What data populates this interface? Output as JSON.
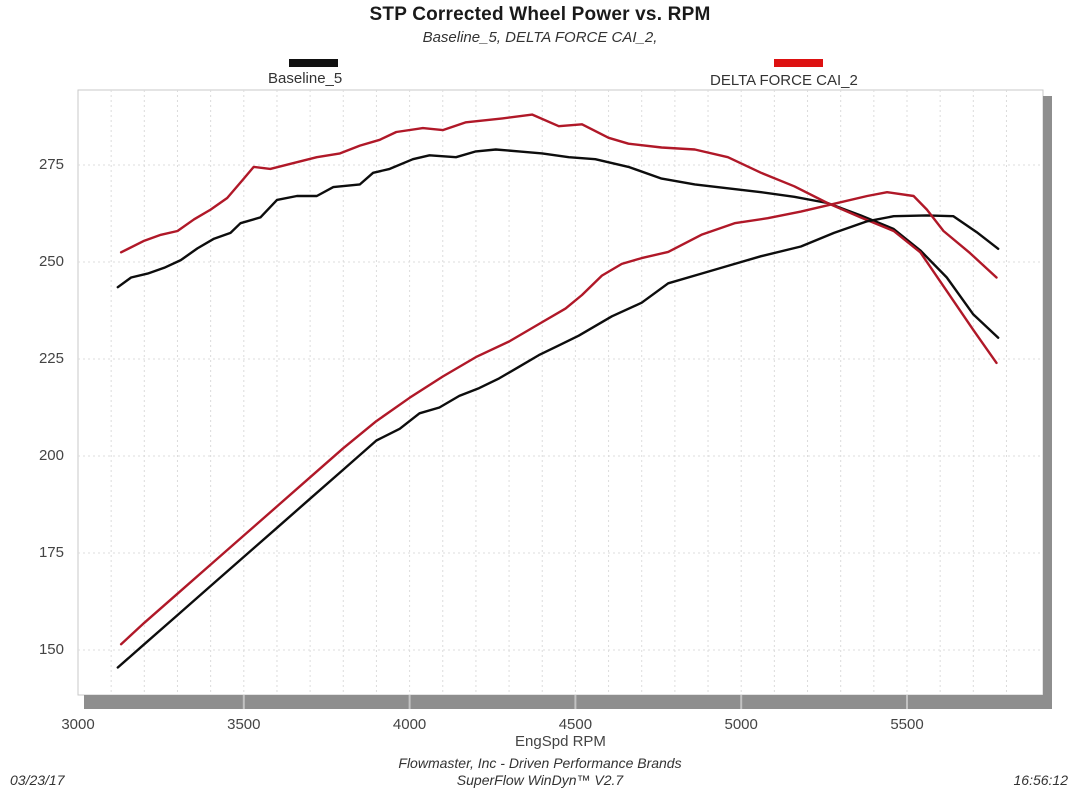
{
  "header": {
    "title": "STP Corrected Wheel Power vs. RPM",
    "subtitle": "Baseline_5, DELTA FORCE CAI_2,"
  },
  "legend": {
    "baseline": {
      "label": "Baseline_5",
      "color": "#111111"
    },
    "cai": {
      "label": "DELTA FORCE CAI_2",
      "color": "#dd1111"
    }
  },
  "footer": {
    "brand_line": "Flowmaster, Inc - Driven Performance Brands",
    "software_line": "SuperFlow WinDyn™ V2.7",
    "date": "03/23/17",
    "time": "16:56:12"
  },
  "chart_data": {
    "type": "line",
    "title": "STP Corrected Wheel Power vs. RPM",
    "xlabel": "EngSpd RPM",
    "ylabel": "",
    "x_range": [
      3000,
      5900
    ],
    "y_range": [
      138,
      294
    ],
    "x_ticks": [
      3000,
      3500,
      4000,
      4500,
      5000,
      5500
    ],
    "y_ticks": [
      150,
      175,
      200,
      225,
      250,
      275
    ],
    "x_minor_grid_step": 100,
    "grid": true,
    "legend_position": "top",
    "axis_strip_color": "#8e8e8e",
    "gridline_color": "#dcdcdc",
    "series": [
      {
        "name": "Baseline_5 torque curve",
        "color": "#0d0d0d",
        "points": [
          [
            3120,
            243.5
          ],
          [
            3160,
            246
          ],
          [
            3210,
            247
          ],
          [
            3260,
            248.5
          ],
          [
            3310,
            250.5
          ],
          [
            3360,
            253.5
          ],
          [
            3410,
            256
          ],
          [
            3460,
            257.5
          ],
          [
            3490,
            260
          ],
          [
            3550,
            261.5
          ],
          [
            3600,
            266
          ],
          [
            3660,
            267
          ],
          [
            3720,
            267
          ],
          [
            3770,
            269.3
          ],
          [
            3850,
            270
          ],
          [
            3890,
            273
          ],
          [
            3940,
            274
          ],
          [
            4010,
            276.5
          ],
          [
            4060,
            277.5
          ],
          [
            4140,
            277
          ],
          [
            4200,
            278.5
          ],
          [
            4260,
            279
          ],
          [
            4330,
            278.5
          ],
          [
            4400,
            278
          ],
          [
            4480,
            277
          ],
          [
            4560,
            276.5
          ],
          [
            4660,
            274.5
          ],
          [
            4760,
            271.5
          ],
          [
            4860,
            270
          ],
          [
            4960,
            269
          ],
          [
            5060,
            268
          ],
          [
            5160,
            266.8
          ],
          [
            5260,
            265.2
          ],
          [
            5360,
            262
          ],
          [
            5460,
            258.5
          ],
          [
            5540,
            253
          ],
          [
            5620,
            246
          ],
          [
            5700,
            236.5
          ],
          [
            5775,
            230.5
          ]
        ]
      },
      {
        "name": "DELTA FORCE CAI_2 torque curve",
        "color": "#b01828",
        "points": [
          [
            3130,
            252.5
          ],
          [
            3200,
            255.5
          ],
          [
            3250,
            257
          ],
          [
            3300,
            258
          ],
          [
            3350,
            261
          ],
          [
            3400,
            263.5
          ],
          [
            3450,
            266.5
          ],
          [
            3500,
            271.5
          ],
          [
            3530,
            274.5
          ],
          [
            3580,
            274
          ],
          [
            3650,
            275.5
          ],
          [
            3720,
            277
          ],
          [
            3790,
            278
          ],
          [
            3850,
            280
          ],
          [
            3910,
            281.5
          ],
          [
            3960,
            283.5
          ],
          [
            4040,
            284.5
          ],
          [
            4100,
            284
          ],
          [
            4170,
            286
          ],
          [
            4280,
            287
          ],
          [
            4370,
            288
          ],
          [
            4450,
            285
          ],
          [
            4520,
            285.5
          ],
          [
            4600,
            282
          ],
          [
            4660,
            280.5
          ],
          [
            4760,
            279.5
          ],
          [
            4860,
            279
          ],
          [
            4960,
            277
          ],
          [
            5060,
            273
          ],
          [
            5160,
            269.5
          ],
          [
            5260,
            265.2
          ],
          [
            5360,
            261.5
          ],
          [
            5460,
            258
          ],
          [
            5540,
            252.5
          ],
          [
            5620,
            242.5
          ],
          [
            5700,
            232.5
          ],
          [
            5770,
            224
          ]
        ]
      },
      {
        "name": "Baseline_5 power curve",
        "color": "#0d0d0d",
        "points": [
          [
            3120,
            145.5
          ],
          [
            3200,
            151.5
          ],
          [
            3300,
            159
          ],
          [
            3400,
            166.5
          ],
          [
            3500,
            174
          ],
          [
            3600,
            181.5
          ],
          [
            3700,
            189
          ],
          [
            3800,
            196.5
          ],
          [
            3900,
            204
          ],
          [
            3970,
            207
          ],
          [
            4030,
            211
          ],
          [
            4090,
            212.5
          ],
          [
            4150,
            215.5
          ],
          [
            4210,
            217.5
          ],
          [
            4270,
            220
          ],
          [
            4330,
            223
          ],
          [
            4390,
            226
          ],
          [
            4450,
            228.5
          ],
          [
            4510,
            231
          ],
          [
            4610,
            236
          ],
          [
            4700,
            239.5
          ],
          [
            4780,
            244.5
          ],
          [
            4880,
            247
          ],
          [
            4960,
            249
          ],
          [
            5060,
            251.5
          ],
          [
            5180,
            254
          ],
          [
            5280,
            257.5
          ],
          [
            5380,
            260.5
          ],
          [
            5460,
            261.8
          ],
          [
            5560,
            262
          ],
          [
            5640,
            261.8
          ],
          [
            5710,
            257.7
          ],
          [
            5775,
            253.4
          ]
        ]
      },
      {
        "name": "DELTA FORCE CAI_2 power curve",
        "color": "#b01828",
        "points": [
          [
            3130,
            151.5
          ],
          [
            3200,
            157
          ],
          [
            3300,
            164.5
          ],
          [
            3400,
            172
          ],
          [
            3500,
            179.5
          ],
          [
            3600,
            187
          ],
          [
            3700,
            194.5
          ],
          [
            3800,
            202
          ],
          [
            3900,
            209
          ],
          [
            4000,
            215
          ],
          [
            4100,
            220.5
          ],
          [
            4200,
            225.5
          ],
          [
            4300,
            229.5
          ],
          [
            4400,
            234.5
          ],
          [
            4470,
            238
          ],
          [
            4520,
            241.5
          ],
          [
            4580,
            246.5
          ],
          [
            4640,
            249.5
          ],
          [
            4700,
            251
          ],
          [
            4780,
            252.6
          ],
          [
            4880,
            257
          ],
          [
            4980,
            260
          ],
          [
            5080,
            261.3
          ],
          [
            5180,
            263
          ],
          [
            5280,
            265
          ],
          [
            5380,
            267
          ],
          [
            5440,
            268
          ],
          [
            5520,
            267
          ],
          [
            5560,
            263.5
          ],
          [
            5610,
            258
          ],
          [
            5690,
            252.3
          ],
          [
            5770,
            246
          ]
        ]
      }
    ]
  }
}
